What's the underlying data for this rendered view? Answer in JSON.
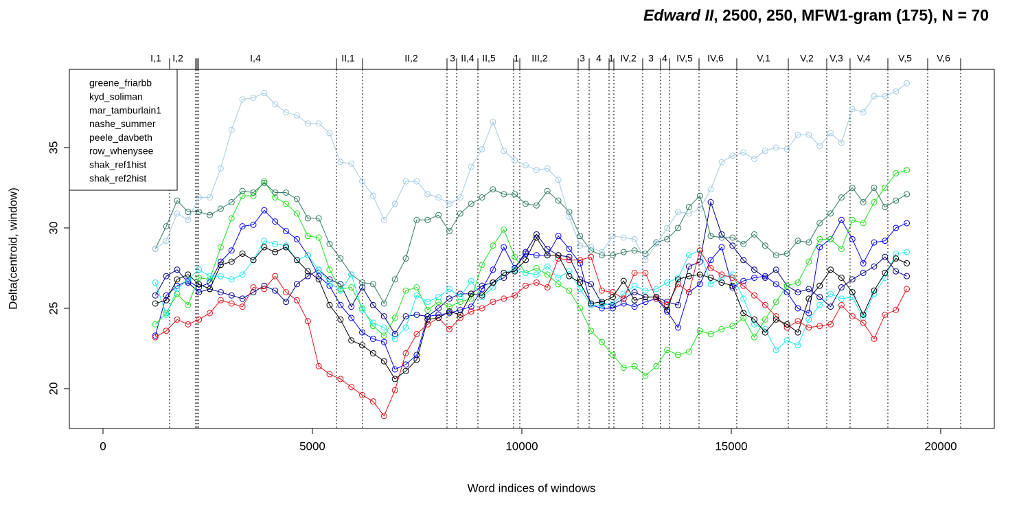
{
  "chart_data": {
    "type": "line",
    "title": [
      "Edward II",
      ", 2500, 250, MFW1-gram (175), N = 70"
    ],
    "xlabel": "Word indices of windows",
    "ylabel": "Delta(centroid, window)",
    "xlim": [
      -803,
      21279
    ],
    "ylim": [
      17.52,
      39.87
    ],
    "xticks": [
      0,
      5000,
      10000,
      15000,
      20000
    ],
    "yticks": [
      20,
      25,
      30,
      35
    ],
    "legend": "top-left",
    "x": [
      1250,
      1510,
      1770,
      2030,
      2290,
      2550,
      2810,
      3070,
      3330,
      3590,
      3850,
      4110,
      4370,
      4630,
      4890,
      5150,
      5410,
      5670,
      5930,
      6190,
      6450,
      6710,
      6970,
      7230,
      7490,
      7750,
      8010,
      8270,
      8530,
      8790,
      9050,
      9310,
      9570,
      9830,
      10090,
      10350,
      10610,
      10870,
      11130,
      11390,
      11650,
      11910,
      12170,
      12430,
      12690,
      12950,
      13210,
      13470,
      13730,
      13990,
      14250,
      14510,
      14770,
      15030,
      15290,
      15550,
      15810,
      16070,
      16330,
      16590,
      16850,
      17110,
      17370,
      17630,
      17890,
      18150,
      18410,
      18670,
      18930,
      19190
    ],
    "series": [
      {
        "name": "greene_friarbb",
        "color": "#0000ff",
        "values": [
          23.3,
          25.8,
          26.4,
          26.7,
          26.3,
          26.6,
          27.9,
          28.6,
          30.1,
          30.2,
          31.1,
          30.4,
          29.8,
          29.3,
          28.3,
          27.0,
          26.4,
          25.2,
          24.4,
          23.5,
          23.1,
          22.9,
          21.2,
          21.5,
          22.1,
          24.5,
          24.6,
          24.7,
          24.9,
          25.1,
          26.2,
          27.4,
          28.8,
          27.5,
          28.4,
          28.3,
          28.3,
          29.5,
          28.7,
          27.8,
          25.2,
          25.0,
          25.0,
          25.3,
          25.1,
          25.4,
          25.6,
          24.8,
          23.8,
          26.0,
          26.5,
          28.0,
          28.8,
          26.3,
          26.7,
          26.9,
          27.0,
          26.5,
          26.0,
          25.0,
          24.7,
          28.8,
          29.3,
          30.5,
          29.3,
          27.8,
          29.1,
          29.2,
          30.0,
          30.3
        ]
      },
      {
        "name": "kyd_soliman",
        "color": "#00008b",
        "values": [
          25.8,
          27.0,
          27.4,
          26.6,
          26.0,
          26.2,
          26.0,
          25.8,
          25.6,
          26.0,
          26.4,
          26.1,
          25.4,
          26.5,
          27.0,
          27.4,
          26.8,
          26.5,
          25.1,
          26.3,
          25.2,
          24.5,
          23.4,
          24.5,
          24.6,
          24.5,
          25.0,
          25.6,
          25.9,
          25.9,
          26.4,
          26.6,
          26.9,
          27.5,
          28.5,
          29.6,
          28.7,
          28.3,
          28.2,
          26.8,
          26.5,
          25.3,
          25.2,
          25.6,
          26.0,
          25.7,
          25.7,
          25.4,
          25.2,
          27.6,
          27.9,
          31.6,
          29.6,
          28.9,
          28.0,
          27.4,
          26.9,
          27.4,
          26.4,
          26.0,
          26.2,
          25.7,
          25.1,
          26.3,
          26.8,
          27.2,
          27.6,
          28.2,
          27.3,
          27.0
        ]
      },
      {
        "name": "mar_tamburlain1",
        "color": "#1ee01e",
        "values": [
          24.0,
          24.7,
          25.9,
          25.2,
          26.9,
          26.8,
          28.8,
          30.6,
          32.0,
          32.0,
          32.9,
          31.9,
          31.5,
          30.9,
          29.5,
          29.4,
          27.4,
          26.2,
          26.3,
          25.0,
          23.9,
          23.3,
          24.4,
          26.1,
          26.3,
          24.9,
          25.4,
          25.1,
          25.4,
          25.6,
          27.7,
          28.9,
          29.9,
          28.2,
          27.2,
          27.5,
          27.1,
          26.5,
          26.1,
          25.0,
          23.6,
          22.9,
          22.1,
          21.3,
          21.4,
          20.8,
          21.4,
          22.4,
          22.1,
          22.3,
          23.6,
          23.4,
          23.7,
          23.9,
          24.4,
          23.2,
          24.3,
          25.4,
          26.4,
          26.6,
          27.9,
          29.3,
          29.3,
          28.7,
          30.5,
          30.3,
          31.6,
          32.5,
          33.4,
          33.6
        ]
      },
      {
        "name": "nashe_summer",
        "color": "#2f7a60",
        "values": [
          28.7,
          30.1,
          31.7,
          31.0,
          31.0,
          30.8,
          31.2,
          31.6,
          32.3,
          32.2,
          32.8,
          32.2,
          32.2,
          31.8,
          30.6,
          30.6,
          29.0,
          28.1,
          27.1,
          26.6,
          26.5,
          25.3,
          26.8,
          28.1,
          30.5,
          30.5,
          30.8,
          29.8,
          30.9,
          31.5,
          31.9,
          32.4,
          32.1,
          32.1,
          31.5,
          31.4,
          32.3,
          31.7,
          31.0,
          29.5,
          28.6,
          28.3,
          28.3,
          28.5,
          28.6,
          28.4,
          29.1,
          29.3,
          30.0,
          31.3,
          32.0,
          29.5,
          29.4,
          29.4,
          29.0,
          29.6,
          28.9,
          28.3,
          28.4,
          29.2,
          29.1,
          30.3,
          30.9,
          31.9,
          32.5,
          31.6,
          32.5,
          31.3,
          31.7,
          32.1
        ]
      },
      {
        "name": "peele_davbeth",
        "color": "#a3cbe0",
        "values": [
          28.7,
          29.2,
          30.9,
          30.5,
          31.9,
          31.9,
          33.7,
          36.1,
          38.0,
          38.1,
          38.4,
          37.7,
          37.2,
          37.0,
          36.5,
          36.5,
          35.9,
          34.1,
          34.0,
          32.9,
          32.0,
          30.5,
          31.5,
          32.9,
          32.9,
          32.1,
          31.9,
          31.5,
          31.9,
          33.8,
          34.9,
          36.6,
          34.8,
          34.2,
          33.9,
          33.6,
          33.7,
          33.0,
          30.7,
          28.9,
          28.8,
          28.5,
          29.5,
          29.4,
          29.3,
          28.0,
          29.0,
          30.0,
          31.0,
          30.9,
          31.2,
          32.4,
          34.1,
          34.5,
          34.7,
          34.3,
          34.8,
          35.0,
          34.9,
          35.8,
          35.8,
          35.1,
          35.9,
          35.3,
          37.4,
          37.2,
          38.2,
          38.2,
          38.5,
          39.0
        ]
      },
      {
        "name": "row_whenysee",
        "color": "#1ee8f0",
        "values": [
          26.6,
          24.6,
          26.2,
          26.8,
          27.4,
          27.0,
          27.0,
          26.8,
          27.1,
          28.0,
          29.2,
          29.0,
          28.9,
          28.0,
          28.3,
          27.4,
          26.6,
          26.1,
          27.1,
          24.9,
          24.1,
          23.8,
          23.1,
          23.8,
          25.8,
          25.4,
          25.7,
          26.2,
          25.7,
          26.7,
          25.7,
          26.3,
          27.2,
          27.4,
          27.2,
          27.1,
          27.6,
          26.9,
          27.3,
          26.2,
          25.2,
          25.2,
          25.3,
          25.9,
          26.4,
          26.1,
          26.2,
          26.6,
          26.9,
          28.3,
          28.6,
          26.5,
          26.9,
          27.1,
          25.6,
          24.0,
          23.7,
          22.4,
          23.0,
          22.7,
          24.3,
          25.2,
          25.9,
          25.6,
          25.7,
          24.4,
          25.9,
          26.9,
          28.4,
          28.5
        ]
      },
      {
        "name": "shak_ref1hist",
        "color": "#e8101a",
        "values": [
          23.2,
          23.6,
          24.3,
          24.0,
          24.3,
          24.7,
          25.5,
          25.3,
          25.1,
          26.3,
          26.2,
          27.0,
          26.0,
          25.5,
          24.2,
          21.4,
          20.9,
          20.6,
          20.1,
          19.6,
          19.2,
          18.3,
          19.9,
          22.2,
          23.4,
          24.0,
          24.4,
          23.7,
          24.4,
          24.8,
          25.0,
          25.4,
          25.6,
          25.8,
          26.4,
          26.6,
          26.3,
          28.1,
          28.0,
          28.0,
          28.2,
          26.1,
          26.0,
          25.6,
          27.2,
          27.2,
          25.6,
          25.2,
          26.5,
          26.0,
          28.6,
          27.5,
          27.1,
          26.9,
          26.4,
          25.8,
          25.2,
          24.5,
          23.8,
          24.2,
          23.8,
          23.9,
          24.0,
          25.2,
          24.5,
          24.1,
          23.1,
          24.6,
          24.9,
          26.2
        ]
      },
      {
        "name": "shak_ref2hist",
        "color": "#000000",
        "values": [
          25.3,
          25.5,
          26.8,
          27.1,
          26.5,
          26.2,
          27.7,
          27.9,
          28.4,
          28.0,
          28.8,
          28.5,
          28.8,
          28.0,
          27.3,
          26.8,
          25.2,
          24.3,
          23.0,
          22.7,
          22.2,
          21.7,
          20.6,
          21.1,
          21.8,
          24.3,
          24.4,
          24.8,
          24.6,
          25.9,
          25.8,
          26.6,
          27.2,
          27.3,
          28.0,
          29.4,
          28.3,
          28.3,
          27.0,
          26.6,
          25.3,
          25.4,
          25.7,
          26.7,
          25.5,
          25.7,
          25.7,
          24.9,
          26.8,
          27.0,
          27.1,
          26.9,
          26.6,
          26.4,
          24.7,
          24.3,
          23.5,
          24.3,
          24.0,
          23.5,
          25.6,
          26.4,
          27.4,
          26.9,
          26.0,
          24.6,
          26.1,
          27.2,
          28.1,
          27.8
        ]
      }
    ],
    "scene_breaks": [
      1590,
      2213,
      2246,
      2279,
      5574,
      6197,
      8213,
      8443,
      8951,
      9803,
      9951,
      11344,
      11607,
      12082,
      12197,
      12885,
      13311,
      13525,
      14230,
      15131,
      16361,
      17279,
      17836,
      18738,
      19689,
      20475
    ],
    "scenes": [
      {
        "label": "I,1",
        "x": 1262
      },
      {
        "label": "I,2",
        "x": 1787
      },
      {
        "label": "I,4",
        "x": 3639
      },
      {
        "label": "II,1",
        "x": 5852
      },
      {
        "label": "II,2",
        "x": 7361
      },
      {
        "label": "3",
        "x": 8344
      },
      {
        "label": "II,4",
        "x": 8705
      },
      {
        "label": "II,5",
        "x": 9213
      },
      {
        "label": "1",
        "x": 9869
      },
      {
        "label": "III,2",
        "x": 10426
      },
      {
        "label": "3",
        "x": 11443
      },
      {
        "label": "4",
        "x": 11836
      },
      {
        "label": "1",
        "x": 12131
      },
      {
        "label": "IV,2",
        "x": 12541
      },
      {
        "label": "3",
        "x": 13082
      },
      {
        "label": "4",
        "x": 13410
      },
      {
        "label": "IV,5",
        "x": 13885
      },
      {
        "label": "IV,6",
        "x": 14623
      },
      {
        "label": "V,1",
        "x": 15770
      },
      {
        "label": "V,2",
        "x": 16803
      },
      {
        "label": "V,3",
        "x": 17508
      },
      {
        "label": "V,4",
        "x": 18164
      },
      {
        "label": "V,5",
        "x": 19148
      },
      {
        "label": "V,6",
        "x": 20066
      }
    ]
  }
}
